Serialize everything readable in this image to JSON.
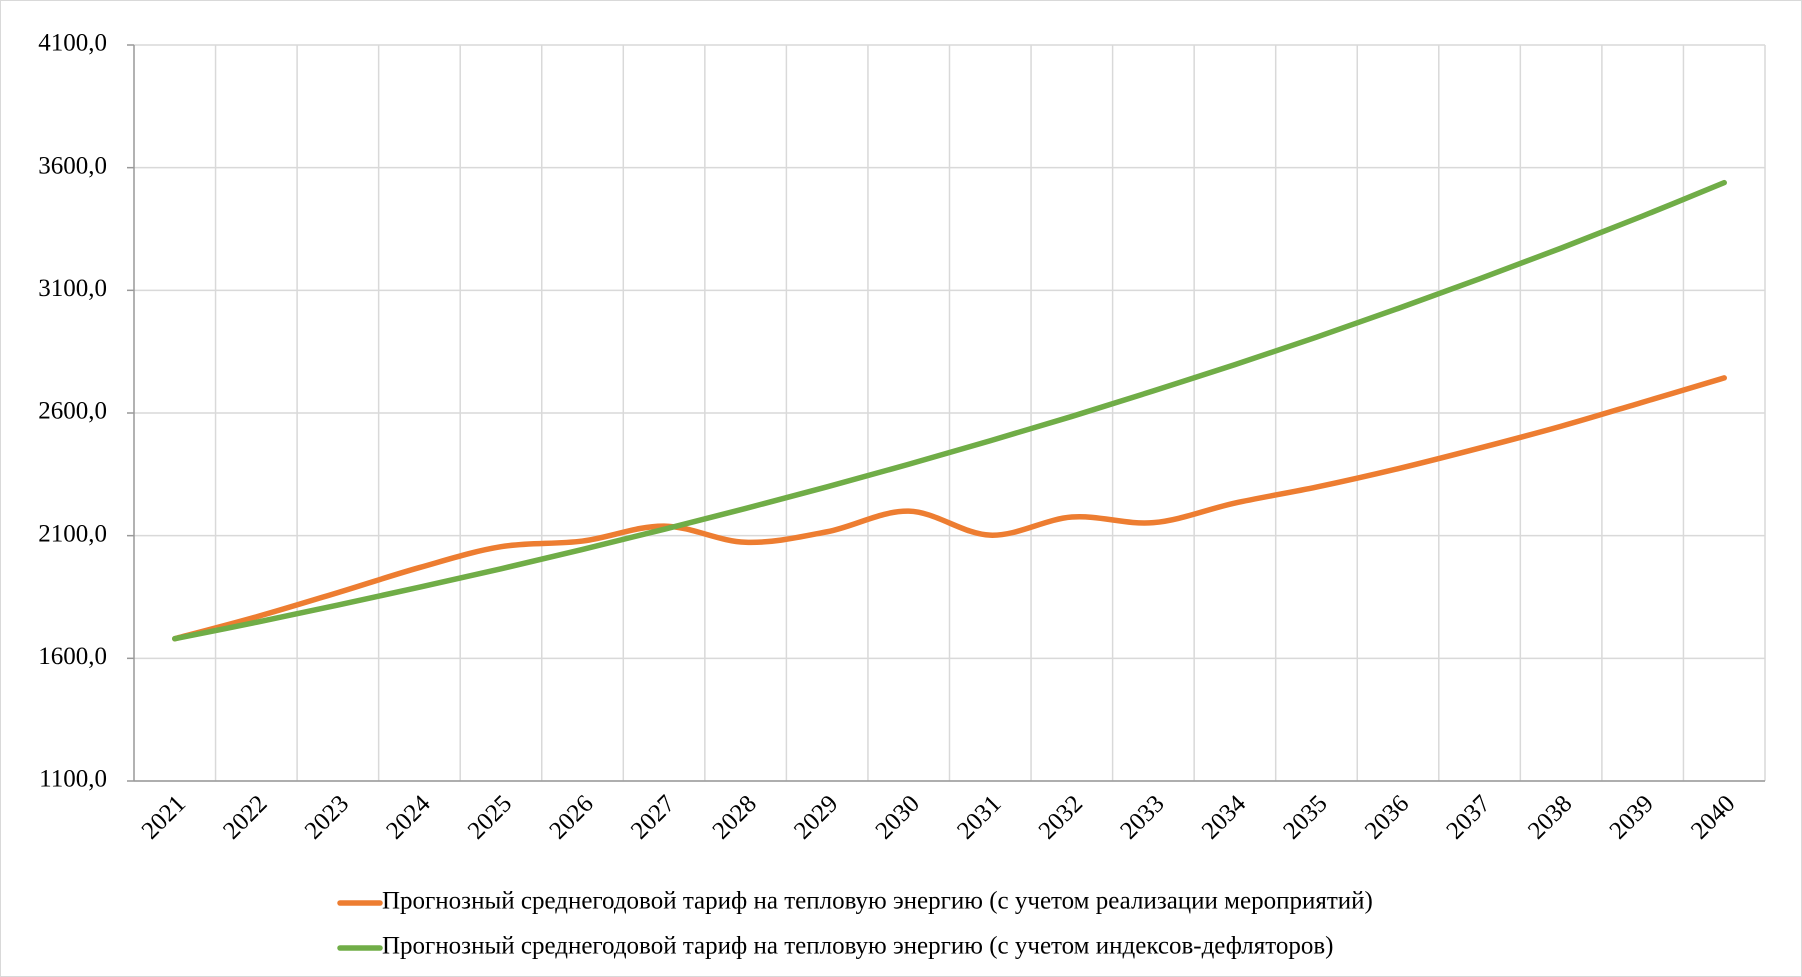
{
  "chart_data": {
    "type": "line",
    "categories": [
      "2021",
      "2022",
      "2023",
      "2024",
      "2025",
      "2026",
      "2027",
      "2028",
      "2029",
      "2030",
      "2031",
      "2032",
      "2033",
      "2034",
      "2035",
      "2036",
      "2037",
      "2038",
      "2039",
      "2040"
    ],
    "series": [
      {
        "name": "Прогнозный среднегодовой тариф на тепловую энергию (с учетом реализации мероприятий)",
        "color": "#ed7d31",
        "values": [
          1680,
          1769,
          1868,
          1970,
          2055,
          2078,
          2139,
          2073,
          2116,
          2200,
          2102,
          2176,
          2153,
          2233,
          2298,
          2373,
          2457,
          2546,
          2644,
          2743
        ]
      },
      {
        "name": "Прогнозный среднегодовой тариф на тепловую энергию (с учетом индексов-дефляторов)",
        "color": "#70ad47",
        "values": [
          1680,
          1747,
          1817,
          1890,
          1965,
          2044,
          2126,
          2211,
          2299,
          2391,
          2487,
          2586,
          2690,
          2797,
          2909,
          3026,
          3147,
          3272,
          3403,
          3539
        ]
      }
    ],
    "ylim": [
      1100,
      4100
    ],
    "yticks": [
      {
        "value": 1100,
        "label": "1100,0"
      },
      {
        "value": 1600,
        "label": "1600,0"
      },
      {
        "value": 2100,
        "label": "2100,0"
      },
      {
        "value": 2600,
        "label": "2600,0"
      },
      {
        "value": 3100,
        "label": "3100,0"
      },
      {
        "value": 3600,
        "label": "3600,0"
      },
      {
        "value": 4100,
        "label": "4100,0"
      }
    ],
    "grid": true,
    "legend": "bottom",
    "smooth": true
  }
}
